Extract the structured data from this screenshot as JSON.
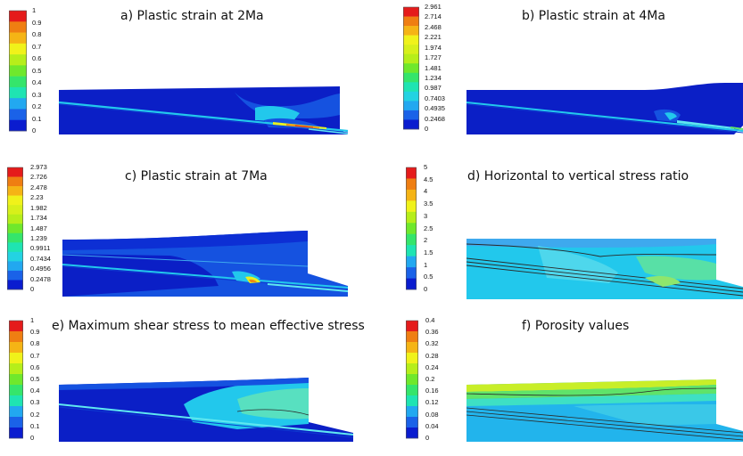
{
  "colors": {
    "scale": [
      "#0a1ccf",
      "#1a62e8",
      "#22a8f0",
      "#23d3e2",
      "#1fe4b2",
      "#35e56b",
      "#6fe82c",
      "#b6ee1a",
      "#f0f21a",
      "#f5b415",
      "#ef7e12",
      "#e51b1b"
    ],
    "deep_blue": "#0b1fc6",
    "mid_blue": "#1552e0",
    "cyan": "#22c8ec",
    "light_cyan": "#5fe8f0",
    "green": "#5ee36a",
    "yellow": "#e8f020",
    "orange": "#f08a12",
    "red": "#e51b1b",
    "line": "#2a2a2a"
  },
  "panels": [
    {
      "id": "a",
      "title": "a) Plastic strain at 2Ma",
      "legend_labels": [
        "1",
        "0.9",
        "0.8",
        "0.7",
        "0.6",
        "0.5",
        "0.4",
        "0.3",
        "0.2",
        "0.1",
        "0"
      ],
      "legend_colors": [
        "#e51b1b",
        "#ef7e12",
        "#f5b415",
        "#f0f21a",
        "#b6ee1a",
        "#6fe82c",
        "#35e56b",
        "#1fe4b2",
        "#22a8f0",
        "#1a62e8",
        "#0a1ccf"
      ]
    },
    {
      "id": "b",
      "title": "b) Plastic strain at 4Ma",
      "legend_labels": [
        "2.961",
        "2.714",
        "2.468",
        "2.221",
        "1.974",
        "1.727",
        "1.481",
        "1.234",
        "0.987",
        "0.7403",
        "0.4935",
        "0.2468",
        "0"
      ],
      "legend_colors": [
        "#e51b1b",
        "#ef7e12",
        "#f5b415",
        "#f0f21a",
        "#d7f01a",
        "#b6ee1a",
        "#6fe82c",
        "#35e56b",
        "#1fe4b2",
        "#23d3e2",
        "#22a8f0",
        "#1a62e8",
        "#0a1ccf"
      ]
    },
    {
      "id": "c",
      "title": "c) Plastic strain at 7Ma",
      "legend_labels": [
        "2.973",
        "2.726",
        "2.478",
        "2.23",
        "1.982",
        "1.734",
        "1.487",
        "1.239",
        "0.9911",
        "0.7434",
        "0.4956",
        "0.2478",
        "0"
      ],
      "legend_colors": [
        "#e51b1b",
        "#ef7e12",
        "#f5b415",
        "#f0f21a",
        "#d7f01a",
        "#b6ee1a",
        "#6fe82c",
        "#35e56b",
        "#1fe4b2",
        "#23d3e2",
        "#22a8f0",
        "#1a62e8",
        "#0a1ccf"
      ]
    },
    {
      "id": "d",
      "title": "d) Horizontal to vertical stress ratio",
      "legend_labels": [
        "5",
        "4.5",
        "4",
        "3.5",
        "3",
        "2.5",
        "2",
        "1.5",
        "1",
        "0.5",
        "0"
      ],
      "legend_colors": [
        "#e51b1b",
        "#ef7e12",
        "#f5b415",
        "#f0f21a",
        "#b6ee1a",
        "#6fe82c",
        "#35e56b",
        "#1fe4b2",
        "#22a8f0",
        "#1a62e8",
        "#0a1ccf"
      ]
    },
    {
      "id": "e",
      "title": "e) Maximum shear stress to mean effective  stress",
      "legend_labels": [
        "1",
        "0.9",
        "0.8",
        "0.7",
        "0.6",
        "0.5",
        "0.4",
        "0.3",
        "0.2",
        "0.1",
        "0"
      ],
      "legend_colors": [
        "#e51b1b",
        "#ef7e12",
        "#f5b415",
        "#f0f21a",
        "#b6ee1a",
        "#6fe82c",
        "#35e56b",
        "#1fe4b2",
        "#22a8f0",
        "#1a62e8",
        "#0a1ccf"
      ]
    },
    {
      "id": "f",
      "title": "f) Porosity values",
      "legend_labels": [
        "0.4",
        "0.36",
        "0.32",
        "0.28",
        "0.24",
        "0.2",
        "0.16",
        "0.12",
        "0.08",
        "0.04",
        "0"
      ],
      "legend_colors": [
        "#e51b1b",
        "#ef7e12",
        "#f5b415",
        "#f0f21a",
        "#b6ee1a",
        "#6fe82c",
        "#35e56b",
        "#1fe4b2",
        "#22a8f0",
        "#1a62e8",
        "#0a1ccf"
      ]
    }
  ]
}
